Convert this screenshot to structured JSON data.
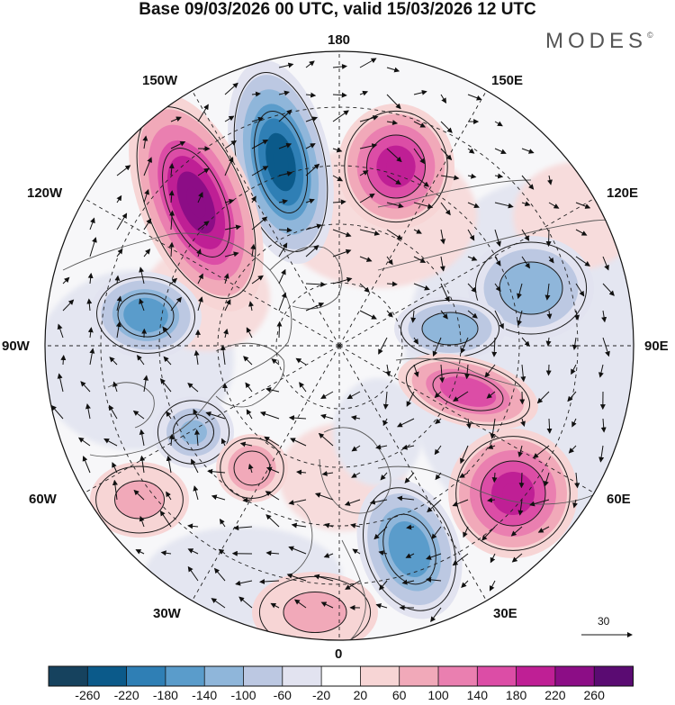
{
  "title": "Base 09/03/2026 00 UTC, valid 15/03/2026 12 UTC",
  "brand": "MODES",
  "brand_mark": "©",
  "longitude_labels": {
    "n180": "180",
    "w150": "150W",
    "e150": "150E",
    "w120": "120W",
    "e120": "120E",
    "w90": "90W",
    "e90": "90E",
    "w60": "60W",
    "e60": "60E",
    "w30": "30W",
    "e30": "30E",
    "s0": "0"
  },
  "vector_scale": "30",
  "colorbar": {
    "labels": [
      "-260",
      "-220",
      "-180",
      "-140",
      "-100",
      "-60",
      "-20",
      "20",
      "60",
      "100",
      "140",
      "180",
      "220",
      "260"
    ],
    "colors": [
      "#16425e",
      "#0b5a8a",
      "#2f7fb5",
      "#5a9ccb",
      "#8fb6da",
      "#bcc8e2",
      "#e2e3f0",
      "#ffffff",
      "#f7d5d5",
      "#f1a9b9",
      "#ea7fb0",
      "#dc4da6",
      "#bf1f95",
      "#8c0d86",
      "#5a0b72"
    ]
  },
  "colors": {
    "blue_core": "#1f6d9e",
    "pink_core": "#b5138c",
    "contour": "#222222",
    "coast": "#555555"
  },
  "anomalies": [
    {
      "name": "low-pacific-150w",
      "value": -240
    },
    {
      "name": "high-pacific-150w-west",
      "value": 240
    },
    {
      "name": "high-east-siberia",
      "value": 200
    },
    {
      "name": "low-canada-100w",
      "value": -180
    },
    {
      "name": "low-siberia",
      "value": -140
    },
    {
      "name": "low-central-asia",
      "value": -130
    },
    {
      "name": "high-western-russia",
      "value": 160
    },
    {
      "name": "high-kazakhstan",
      "value": 200
    },
    {
      "name": "low-scandinavia",
      "value": -180
    },
    {
      "name": "low-labrador",
      "value": -110
    },
    {
      "name": "high-atlantic",
      "value": 90
    },
    {
      "name": "high-northwest-atlantic",
      "value": 70
    },
    {
      "name": "high-iberia",
      "value": 70
    }
  ]
}
